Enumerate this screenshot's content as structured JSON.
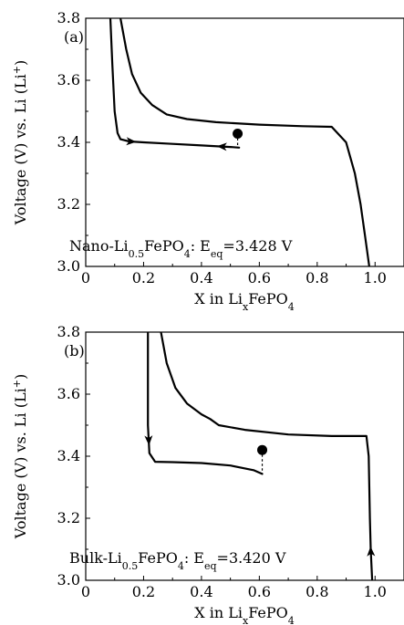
{
  "chart_data": [
    {
      "type": "line",
      "panel_label": "(a)",
      "xlabel": "X in Li_xFePO_4",
      "ylabel": "Voltage (V) vs. Li (Li+)",
      "xlim": [
        0,
        1.1
      ],
      "ylim": [
        3.0,
        3.8
      ],
      "xticks": [
        0,
        0.2,
        0.4,
        0.6,
        0.8,
        1.0
      ],
      "xtick_labels": [
        "0",
        "0.2",
        "0.4",
        "0.6",
        "0.8",
        "1.0"
      ],
      "yticks": [
        3.0,
        3.2,
        3.4,
        3.6,
        3.8
      ],
      "ytick_labels": [
        "3.0",
        "3.2",
        "3.4",
        "3.6",
        "3.8"
      ],
      "annotation": {
        "pre": "Nano-Li",
        "sub1": "0.5",
        "mid": "FePO",
        "sub2": "4",
        "sep": ": E",
        "sub3": "eq",
        "post": "=3.428 V"
      },
      "equilibrium_point": {
        "x": 0.525,
        "y": 3.428
      },
      "series": [
        {
          "x": [
            0.12,
            0.14,
            0.16,
            0.19,
            0.23,
            0.28,
            0.35,
            0.45,
            0.6,
            0.75,
            0.85,
            0.9,
            0.93,
            0.95,
            0.965,
            0.98
          ],
          "y": [
            3.8,
            3.7,
            3.62,
            3.56,
            3.52,
            3.49,
            3.475,
            3.465,
            3.457,
            3.452,
            3.45,
            3.4,
            3.3,
            3.2,
            3.1,
            3.0
          ]
        },
        {
          "x": [
            0.085,
            0.092,
            0.1,
            0.11,
            0.12,
            0.15,
            0.2,
            0.3,
            0.4,
            0.5,
            0.53
          ],
          "y": [
            3.8,
            3.65,
            3.5,
            3.43,
            3.41,
            3.403,
            3.4,
            3.395,
            3.39,
            3.385,
            3.383
          ]
        }
      ]
    },
    {
      "type": "line",
      "panel_label": "(b)",
      "xlabel": "X in Li_xFePO_4",
      "ylabel": "Voltage (V) vs. Li (Li+)",
      "xlim": [
        0,
        1.1
      ],
      "ylim": [
        3.0,
        3.8
      ],
      "xticks": [
        0,
        0.2,
        0.4,
        0.6,
        0.8,
        1.0
      ],
      "xtick_labels": [
        "0",
        "0.2",
        "0.4",
        "0.6",
        "0.8",
        "1.0"
      ],
      "yticks": [
        3.0,
        3.2,
        3.4,
        3.6,
        3.8
      ],
      "ytick_labels": [
        "3.0",
        "3.2",
        "3.4",
        "3.6",
        "3.8"
      ],
      "annotation": {
        "pre": "Bulk-Li",
        "sub1": "0.5",
        "mid": "FePO",
        "sub2": "4",
        "sep": ": E",
        "sub3": "eq",
        "post": "=3.420 V"
      },
      "equilibrium_point": {
        "x": 0.61,
        "y": 3.42
      },
      "series": [
        {
          "x": [
            0.26,
            0.28,
            0.31,
            0.35,
            0.4,
            0.43,
            0.46,
            0.55,
            0.7,
            0.85,
            0.97,
            0.978,
            0.982,
            0.985,
            0.99
          ],
          "y": [
            3.8,
            3.7,
            3.62,
            3.57,
            3.535,
            3.52,
            3.5,
            3.485,
            3.47,
            3.465,
            3.465,
            3.4,
            3.2,
            3.1,
            3.0
          ]
        },
        {
          "x": [
            0.215,
            0.215,
            0.22,
            0.24,
            0.3,
            0.4,
            0.5,
            0.58,
            0.61
          ],
          "y": [
            3.8,
            3.5,
            3.41,
            3.382,
            3.381,
            3.378,
            3.37,
            3.355,
            3.343
          ]
        }
      ]
    }
  ]
}
